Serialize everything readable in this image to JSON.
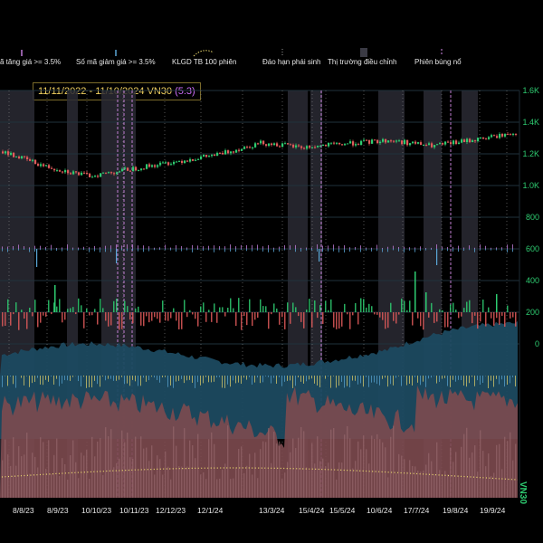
{
  "legend": [
    {
      "label": "ã tăng giá >= 3.5%",
      "icon": "purple-tick-icon",
      "color": "#c07ad8"
    },
    {
      "label": "Số mã giảm giá >= 3.5%",
      "icon": "blue-tick-icon",
      "color": "#5aa6d6"
    },
    {
      "label": "KLGD TB 100 phiên",
      "icon": "yellow-dotted-curve-icon",
      "color": "#e6d36a"
    },
    {
      "label": "Đáo hạn phái sinh",
      "icon": "gray-dotted-line-icon",
      "color": "#9a9a9a"
    },
    {
      "label": "Thị trường điều chỉnh",
      "icon": "gray-block-icon",
      "color": "#3a3a44"
    },
    {
      "label": "Phiên bùng nổ",
      "icon": "pink-dashed-line-icon",
      "color": "#d48ae8"
    }
  ],
  "title": {
    "range": "11/11/2022 - 11/10/2024",
    "index": "VN30",
    "score": "(5.3)"
  },
  "right_axis_label": "VN30",
  "colors": {
    "up": "#2ecc71",
    "down": "#e05a5a",
    "volume_area": "#7d4a4f",
    "teal_area": "#1c4a60",
    "correction": "#2a2a34",
    "grid": "#20323c",
    "avg_line": "#f0e070"
  },
  "chart_data": {
    "type": "line",
    "x": [
      "8/8/23",
      "8/9/23",
      "10/10/23",
      "10/11/23",
      "12/12/23",
      "12/1/24",
      "13/3/24",
      "15/4/24",
      "15/5/24",
      "10/6/24",
      "17/7/24",
      "19/8/24",
      "19/9/24"
    ],
    "y_ticks": [
      "1.6K",
      "1.4K",
      "1.2K",
      "1.0K",
      "800",
      "600",
      "400",
      "200",
      "0"
    ],
    "ylim": [
      0,
      1600
    ],
    "series": [
      {
        "values": [
          1215,
          1120,
          1060,
          1105,
          1150,
          1195,
          1270,
          1240,
          1265,
          1285,
          1250,
          1290,
          1335
        ]
      }
    ]
  }
}
